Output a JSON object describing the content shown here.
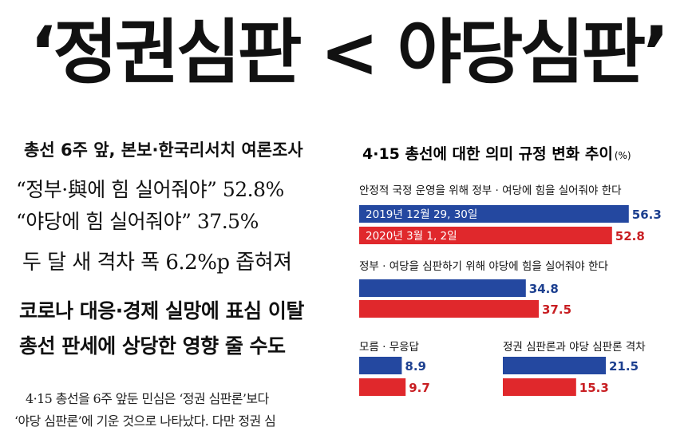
{
  "headline": "‘정권심판 < 야당심판’",
  "left_panel": {
    "kicker": "총선 6주 앞, 본보·한국리서치 여론조사",
    "quote1": "“정부·與에 힘 실어줘야” 52.8%",
    "quote2": "“야당에 힘 실어줘야” 37.5%",
    "quote3": "두 달 새 격차 폭 6.2%p 좁혀져",
    "bold1": "코로나 대응·경제 실망에 표심 이탈",
    "bold2": "총선 판세에 상당한 영향 줄 수도",
    "body1": "4·15 총선을 6주 앞둔 민심은 ‘정권 심판론’보다",
    "body2": "‘야당 심판론’에 기운 것으로 나타났다. 다만 정권 심"
  },
  "colors": {
    "blue": "#2448a0",
    "red": "#e0282c",
    "blue_text": "#1c3f8f",
    "red_text": "#c81e22"
  },
  "chart_data": {
    "type": "bar",
    "title": "4·15 총선에 대한 의미 규정 변화 추이",
    "unit": "(%)",
    "series": [
      {
        "name": "2019년 12월 29, 30일"
      },
      {
        "name": "2020년 3월 1, 2일"
      }
    ],
    "groups": [
      {
        "label": "안정적 국정 운영을 위해 정부 · 여당에 힘을 실어줘야 한다",
        "values": [
          56.3,
          52.8
        ]
      },
      {
        "label": "정부 · 여당을 심판하기 위해 야당에 힘을 실어줘야 한다",
        "values": [
          34.8,
          37.5
        ]
      },
      {
        "label": "모름 · 무응답",
        "values": [
          8.9,
          9.7
        ]
      },
      {
        "label": "정권 심판론과 야당 심판론 격차",
        "values": [
          21.5,
          15.3
        ]
      }
    ],
    "value_labels": [
      [
        "56.3",
        "52.8"
      ],
      [
        "34.8",
        "37.5"
      ],
      [
        "8.9",
        "9.7"
      ],
      [
        "21.5",
        "15.3"
      ]
    ]
  }
}
